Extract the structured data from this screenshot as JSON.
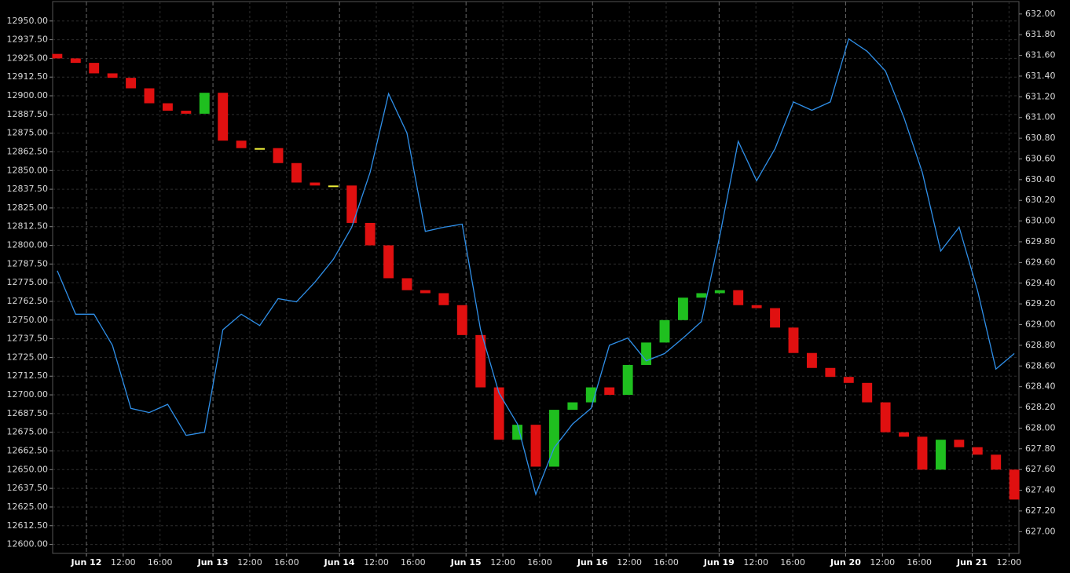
{
  "chart_data": {
    "type": "candlestick",
    "x": [
      0.5,
      2.5,
      4.5,
      6.5,
      8.5,
      10.5,
      12.5,
      14.5,
      16.5,
      18.5,
      20.5,
      22.5,
      24.5,
      26.5,
      28.5,
      30.5,
      32.5,
      34.5,
      36.5,
      38.5,
      40.5,
      42.5,
      44.5,
      46.5,
      48.5,
      50.5,
      52.5,
      54.5,
      56.5,
      58.5,
      60.5,
      62.5,
      64.5,
      66.5,
      68.5,
      70.5,
      72.5,
      74.5,
      76.5,
      78.5,
      80.5,
      82.5,
      84.5,
      86.5,
      88.5,
      90.5,
      92.5,
      94.5,
      96.5,
      98.5,
      100.5,
      102.5,
      104.5
    ],
    "candles": {
      "open": [
        12928,
        12925,
        12922,
        12915,
        12912,
        12905,
        12895,
        12890,
        12888,
        12902,
        12870,
        12865,
        12865,
        12855,
        12842,
        12840,
        12840,
        12815,
        12800,
        12778,
        12770,
        12768,
        12760,
        12740,
        12705,
        12670,
        12680,
        12652,
        12690,
        12695,
        12705,
        12700,
        12720,
        12735,
        12750,
        12765,
        12768,
        12770,
        12760,
        12758,
        12745,
        12728,
        12718,
        12712,
        12708,
        12695,
        12675,
        12672,
        12650,
        12670,
        12665,
        12660,
        12650
      ],
      "close": [
        12925,
        12922,
        12915,
        12912,
        12905,
        12895,
        12890,
        12888,
        12902,
        12870,
        12865,
        12865,
        12855,
        12842,
        12840,
        12840,
        12815,
        12800,
        12778,
        12770,
        12768,
        12760,
        12740,
        12705,
        12670,
        12680,
        12652,
        12690,
        12695,
        12705,
        12700,
        12720,
        12735,
        12750,
        12765,
        12768,
        12770,
        12760,
        12758,
        12745,
        12728,
        12718,
        12712,
        12708,
        12695,
        12675,
        12672,
        12650,
        12670,
        12665,
        12660,
        12650,
        12630
      ],
      "up_color": "#1fbf1f",
      "down_color": "#e01010",
      "flat_color": "#f2f23a"
    },
    "line": {
      "axis": "y2",
      "color": "#2f8fe8",
      "values": [
        629.52,
        629.1,
        629.1,
        628.8,
        628.19,
        628.15,
        628.23,
        627.93,
        627.96,
        628.95,
        629.1,
        628.99,
        629.25,
        629.22,
        629.41,
        629.63,
        629.94,
        630.47,
        631.23,
        630.85,
        629.9,
        629.94,
        629.97,
        628.95,
        628.34,
        628.04,
        627.36,
        627.81,
        628.04,
        628.19,
        628.8,
        628.87,
        628.65,
        628.72,
        628.87,
        629.03,
        629.86,
        630.77,
        630.39,
        630.7,
        631.15,
        631.07,
        631.15,
        631.76,
        631.64,
        631.45,
        631.0,
        630.47,
        629.71,
        629.94,
        629.33,
        628.57,
        628.72
      ]
    },
    "xlim": [
      0,
      105
    ],
    "day_ticks": [
      {
        "value": 3.67,
        "label": "Jun 12"
      },
      {
        "value": 17.42,
        "label": "Jun 13"
      },
      {
        "value": 31.17,
        "label": "Jun 14"
      },
      {
        "value": 44.92,
        "label": "Jun 15"
      },
      {
        "value": 58.67,
        "label": "Jun 16"
      },
      {
        "value": 72.42,
        "label": "Jun 19"
      },
      {
        "value": 86.17,
        "label": "Jun 20"
      },
      {
        "value": 99.92,
        "label": "Jun 21"
      }
    ],
    "xticks": [
      {
        "value": 7.67,
        "label": "12:00"
      },
      {
        "value": 11.67,
        "label": "16:00"
      },
      {
        "value": 21.42,
        "label": "12:00"
      },
      {
        "value": 25.42,
        "label": "16:00"
      },
      {
        "value": 35.17,
        "label": "12:00"
      },
      {
        "value": 39.17,
        "label": "16:00"
      },
      {
        "value": 48.92,
        "label": "12:00"
      },
      {
        "value": 52.92,
        "label": "16:00"
      },
      {
        "value": 62.67,
        "label": "12:00"
      },
      {
        "value": 66.67,
        "label": "16:00"
      },
      {
        "value": 76.42,
        "label": "12:00"
      },
      {
        "value": 80.42,
        "label": "16:00"
      },
      {
        "value": 90.17,
        "label": "12:00"
      },
      {
        "value": 94.17,
        "label": "16:00"
      },
      {
        "value": 103.92,
        "label": "12:00"
      }
    ],
    "ylim": [
      12594,
      12963
    ],
    "yticks": [
      {
        "value": 12600,
        "label": "12600.00"
      },
      {
        "value": 12612.5,
        "label": "12612.50"
      },
      {
        "value": 12625,
        "label": "12625.00"
      },
      {
        "value": 12637.5,
        "label": "12637.50"
      },
      {
        "value": 12650,
        "label": "12650.00"
      },
      {
        "value": 12662.5,
        "label": "12662.50"
      },
      {
        "value": 12675,
        "label": "12675.00"
      },
      {
        "value": 12687.5,
        "label": "12687.50"
      },
      {
        "value": 12700,
        "label": "12700.00"
      },
      {
        "value": 12712.5,
        "label": "12712.50"
      },
      {
        "value": 12725,
        "label": "12725.00"
      },
      {
        "value": 12737.5,
        "label": "12737.50"
      },
      {
        "value": 12750,
        "label": "12750.00"
      },
      {
        "value": 12762.5,
        "label": "12762.50"
      },
      {
        "value": 12775,
        "label": "12775.00"
      },
      {
        "value": 12787.5,
        "label": "12787.50"
      },
      {
        "value": 12800,
        "label": "12800.00"
      },
      {
        "value": 12812.5,
        "label": "12812.50"
      },
      {
        "value": 12825,
        "label": "12825.00"
      },
      {
        "value": 12837.5,
        "label": "12837.50"
      },
      {
        "value": 12850,
        "label": "12850.00"
      },
      {
        "value": 12862.5,
        "label": "12862.50"
      },
      {
        "value": 12875,
        "label": "12875.00"
      },
      {
        "value": 12887.5,
        "label": "12887.50"
      },
      {
        "value": 12900,
        "label": "12900.00"
      },
      {
        "value": 12912.5,
        "label": "12912.50"
      },
      {
        "value": 12925,
        "label": "12925.00"
      },
      {
        "value": 12937.5,
        "label": "12937.50"
      },
      {
        "value": 12950,
        "label": "12950.00"
      }
    ],
    "y2lim": [
      626.79,
      632.12
    ],
    "y2ticks": [
      {
        "value": 627,
        "label": "627.00"
      },
      {
        "value": 627.2,
        "label": "627.20"
      },
      {
        "value": 627.4,
        "label": "627.40"
      },
      {
        "value": 627.6,
        "label": "627.60"
      },
      {
        "value": 627.8,
        "label": "627.80"
      },
      {
        "value": 628,
        "label": "628.00"
      },
      {
        "value": 628.2,
        "label": "628.20"
      },
      {
        "value": 628.4,
        "label": "628.40"
      },
      {
        "value": 628.6,
        "label": "628.60"
      },
      {
        "value": 628.8,
        "label": "628.80"
      },
      {
        "value": 629,
        "label": "629.00"
      },
      {
        "value": 629.2,
        "label": "629.20"
      },
      {
        "value": 629.4,
        "label": "629.40"
      },
      {
        "value": 629.6,
        "label": "629.60"
      },
      {
        "value": 629.8,
        "label": "629.80"
      },
      {
        "value": 630,
        "label": "630.00"
      },
      {
        "value": 630.2,
        "label": "630.20"
      },
      {
        "value": 630.4,
        "label": "630.40"
      },
      {
        "value": 630.6,
        "label": "630.60"
      },
      {
        "value": 630.8,
        "label": "630.80"
      },
      {
        "value": 631,
        "label": "631.00"
      },
      {
        "value": 631.2,
        "label": "631.20"
      },
      {
        "value": 631.4,
        "label": "631.40"
      },
      {
        "value": 631.6,
        "label": "631.60"
      },
      {
        "value": 631.8,
        "label": "631.80"
      },
      {
        "value": 632,
        "label": "632.00"
      }
    ],
    "grid": true
  }
}
